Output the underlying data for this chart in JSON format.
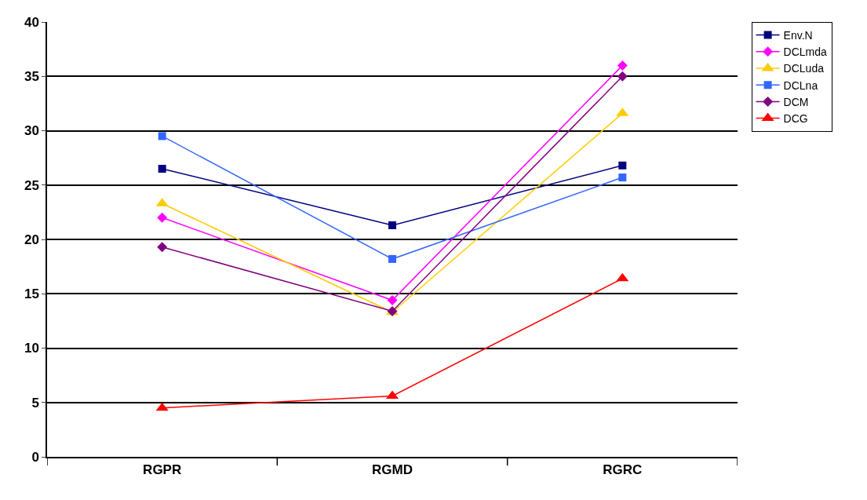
{
  "chart_data": {
    "type": "line",
    "categories": [
      "RGPR",
      "RGMD",
      "RGRC"
    ],
    "series": [
      {
        "name": "Env.N",
        "color": "#000080",
        "marker": "square",
        "values": [
          26.5,
          21.3,
          26.8
        ]
      },
      {
        "name": "DCLmda",
        "color": "#ff00ff",
        "marker": "diamond",
        "values": [
          22.0,
          14.4,
          36.0
        ]
      },
      {
        "name": "DCLuda",
        "color": "#ffcc00",
        "marker": "triangle",
        "values": [
          23.3,
          13.3,
          31.6
        ]
      },
      {
        "name": "DCLna",
        "color": "#3366ff",
        "marker": "square",
        "values": [
          29.5,
          18.2,
          25.7
        ]
      },
      {
        "name": "DCM",
        "color": "#800080",
        "marker": "diamond",
        "values": [
          19.3,
          13.4,
          35.0
        ]
      },
      {
        "name": "DCG",
        "color": "#ff0000",
        "marker": "triangle",
        "values": [
          4.5,
          5.6,
          16.4
        ]
      }
    ],
    "ylim": [
      0,
      40
    ],
    "yticks": [
      0,
      5,
      10,
      15,
      20,
      25,
      30,
      35,
      40
    ],
    "grid": "y",
    "legend": "top right",
    "line_style": "solid"
  }
}
